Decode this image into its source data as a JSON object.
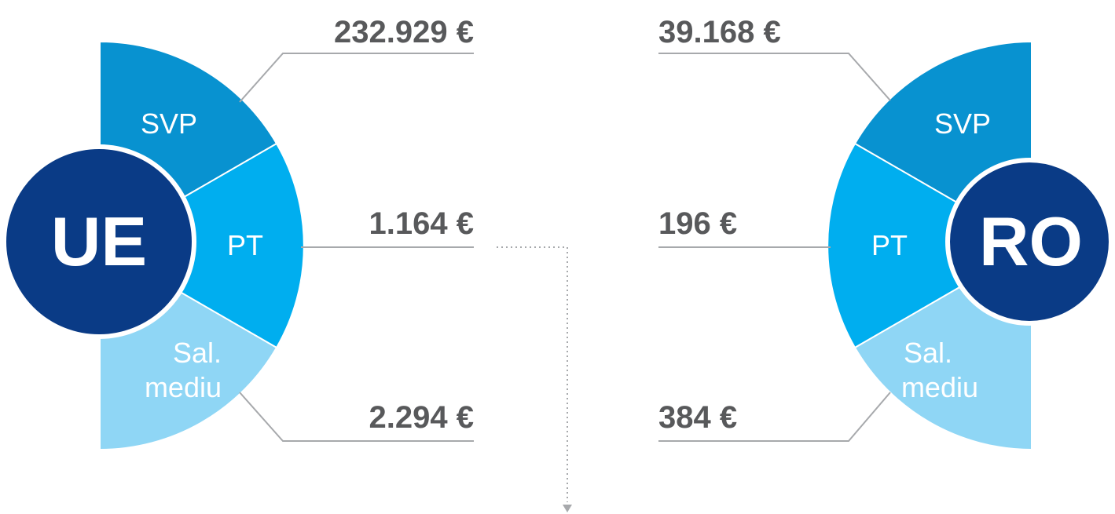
{
  "left": {
    "label": "UE",
    "segments": [
      {
        "label": "SVP",
        "value": "232.929 €"
      },
      {
        "label": "PT",
        "value": "1.164 €"
      },
      {
        "label_lines": [
          "Sal.",
          "mediu"
        ],
        "value": "2.294 €"
      }
    ]
  },
  "right": {
    "label": "RO",
    "segments": [
      {
        "label": "SVP",
        "value": "39.168 €"
      },
      {
        "label": "PT",
        "value": "196 €"
      },
      {
        "label_lines": [
          "Sal.",
          "mediu"
        ],
        "value": "384 €"
      }
    ]
  }
}
